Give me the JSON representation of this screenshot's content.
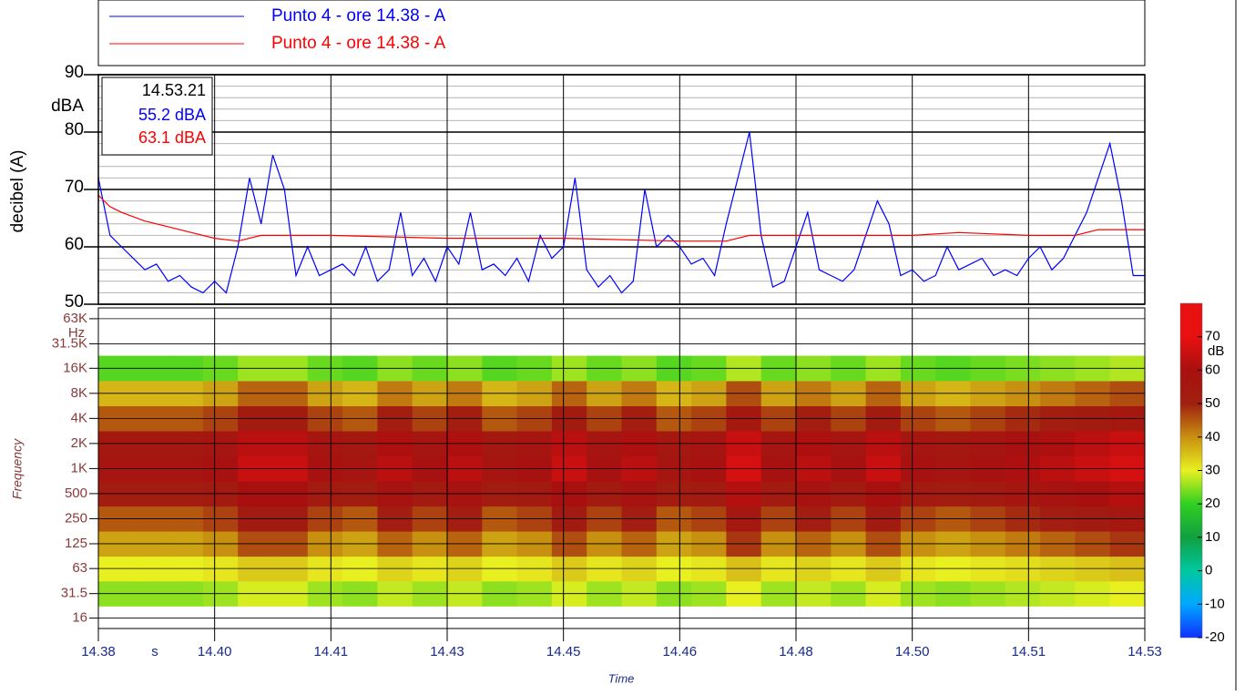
{
  "chart_data": [
    {
      "type": "line",
      "ylabel": "decibel (A)",
      "yunit": "dBA",
      "ylim": [
        50,
        90
      ],
      "yticks": [
        50,
        60,
        70,
        80,
        90
      ],
      "yminor": [
        52,
        54,
        56,
        58,
        62,
        64,
        66,
        68,
        72,
        74,
        76,
        78,
        82,
        84,
        86,
        88
      ],
      "xlim": [
        0,
        900
      ],
      "xticks": [
        {
          "value": 0,
          "label": "14.38"
        },
        {
          "value": 100,
          "label": "14.40"
        },
        {
          "value": 200,
          "label": "14.41"
        },
        {
          "value": 300,
          "label": "14.43"
        },
        {
          "value": 400,
          "label": "14.45"
        },
        {
          "value": 500,
          "label": "14.46"
        },
        {
          "value": 600,
          "label": "14.48"
        },
        {
          "value": 700,
          "label": "14.50"
        },
        {
          "value": 800,
          "label": "14.51"
        },
        {
          "value": 900,
          "label": "14.53"
        }
      ],
      "cursor": {
        "time": "14.53.21",
        "readings": [
          "55.2 dBA",
          "63.1 dBA"
        ]
      },
      "series": [
        {
          "name": "Punto 4 - ore 14.38 - A",
          "color": "#0000ff",
          "x": [
            0,
            10,
            20,
            30,
            40,
            50,
            60,
            70,
            80,
            90,
            100,
            110,
            120,
            130,
            140,
            150,
            160,
            170,
            180,
            190,
            200,
            210,
            220,
            230,
            240,
            250,
            260,
            270,
            280,
            290,
            300,
            310,
            320,
            330,
            340,
            350,
            360,
            370,
            380,
            390,
            400,
            410,
            420,
            430,
            440,
            450,
            460,
            470,
            480,
            490,
            500,
            510,
            520,
            530,
            540,
            550,
            560,
            570,
            580,
            590,
            600,
            610,
            620,
            630,
            640,
            650,
            660,
            670,
            680,
            690,
            700,
            710,
            720,
            730,
            740,
            750,
            760,
            770,
            780,
            790,
            800,
            810,
            820,
            830,
            840,
            850,
            860,
            870,
            880,
            890,
            900
          ],
          "values": [
            72,
            62,
            60,
            58,
            56,
            57,
            54,
            55,
            53,
            52,
            54,
            52,
            60,
            72,
            64,
            76,
            70,
            55,
            60,
            55,
            56,
            57,
            55,
            60,
            54,
            56,
            66,
            55,
            58,
            54,
            60,
            57,
            66,
            56,
            57,
            55,
            58,
            54,
            62,
            58,
            60,
            72,
            56,
            53,
            55,
            52,
            54,
            70,
            60,
            62,
            60,
            57,
            58,
            55,
            64,
            72,
            80,
            62,
            53,
            54,
            60,
            66,
            56,
            55,
            54,
            56,
            62,
            68,
            64,
            55,
            56,
            54,
            55,
            60,
            56,
            57,
            58,
            55,
            56,
            55,
            58,
            60,
            56,
            58,
            62,
            66,
            72,
            78,
            68,
            55,
            55
          ]
        },
        {
          "name": "Punto 4 - ore 14.38 - A",
          "color": "#ff0000",
          "x": [
            0,
            10,
            20,
            40,
            60,
            80,
            100,
            120,
            140,
            200,
            300,
            400,
            500,
            540,
            560,
            600,
            700,
            740,
            800,
            840,
            860,
            880,
            900
          ],
          "values": [
            69,
            67,
            66,
            64.5,
            63.5,
            62.5,
            61.5,
            61,
            62,
            62,
            61.5,
            61.5,
            61,
            61,
            62,
            62,
            62,
            62.5,
            62,
            62,
            63,
            63,
            63
          ]
        }
      ]
    },
    {
      "type": "heatmap",
      "ylabel": "Frequency",
      "yunit": "Hz",
      "log": true,
      "ylim": [
        12,
        85000
      ],
      "yticks": [
        16,
        31.5,
        63,
        125,
        250,
        500,
        {
          "value": 1000,
          "label": "1K"
        },
        {
          "value": 2000,
          "label": "2K"
        },
        {
          "value": 4000,
          "label": "4K"
        },
        {
          "value": 8000,
          "label": "8K"
        },
        {
          "value": 16000,
          "label": "16K"
        },
        {
          "value": 31500,
          "label": "31.5K"
        },
        {
          "value": 63000,
          "label": "63K"
        }
      ],
      "xlabel": "Time",
      "xunit": "s",
      "xlim": [
        0,
        900
      ],
      "xticks": [
        {
          "value": 0,
          "label": "14.38"
        },
        {
          "value": 100,
          "label": "14.40"
        },
        {
          "value": 200,
          "label": "14.41"
        },
        {
          "value": 300,
          "label": "14.43"
        },
        {
          "value": 400,
          "label": "14.45"
        },
        {
          "value": 500,
          "label": "14.46"
        },
        {
          "value": 600,
          "label": "14.48"
        },
        {
          "value": 700,
          "label": "14.50"
        },
        {
          "value": 800,
          "label": "14.51"
        },
        {
          "value": 900,
          "label": "14.53"
        }
      ],
      "xbins": [
        0,
        30,
        60,
        90,
        120,
        150,
        180,
        210,
        240,
        270,
        300,
        330,
        360,
        390,
        420,
        450,
        480,
        510,
        540,
        570,
        600,
        630,
        660,
        690,
        720,
        750,
        780,
        810,
        840,
        870,
        900
      ],
      "bands": [
        31.5,
        63,
        125,
        250,
        500,
        1000,
        2000,
        4000,
        8000,
        16000
      ],
      "matrix": [
        [
          25,
          25,
          25,
          26,
          29,
          29,
          26,
          25,
          28,
          26,
          28,
          25,
          26,
          29,
          26,
          28,
          25,
          26,
          30,
          26,
          28,
          26,
          29,
          26,
          25,
          26,
          27,
          28,
          29,
          30
        ],
        [
          30,
          30,
          30,
          31,
          34,
          34,
          31,
          30,
          33,
          31,
          33,
          30,
          31,
          34,
          31,
          33,
          30,
          31,
          35,
          31,
          33,
          31,
          34,
          31,
          30,
          31,
          32,
          33,
          34,
          35
        ],
        [
          38,
          38,
          38,
          40,
          46,
          46,
          40,
          38,
          44,
          40,
          44,
          38,
          40,
          46,
          40,
          44,
          38,
          40,
          48,
          40,
          44,
          40,
          46,
          40,
          38,
          40,
          42,
          44,
          46,
          48
        ],
        [
          45,
          45,
          45,
          47,
          53,
          53,
          47,
          45,
          51,
          47,
          51,
          45,
          47,
          53,
          47,
          51,
          45,
          47,
          55,
          47,
          51,
          47,
          53,
          47,
          45,
          47,
          49,
          51,
          53,
          55
        ],
        [
          52,
          52,
          52,
          54,
          60,
          60,
          54,
          52,
          58,
          54,
          58,
          52,
          54,
          60,
          54,
          58,
          52,
          54,
          62,
          54,
          58,
          54,
          60,
          54,
          52,
          54,
          56,
          58,
          60,
          62
        ],
        [
          57,
          57,
          57,
          59,
          65,
          65,
          59,
          57,
          63,
          59,
          63,
          57,
          59,
          65,
          59,
          63,
          57,
          59,
          67,
          59,
          63,
          59,
          65,
          59,
          57,
          59,
          61,
          63,
          65,
          67
        ],
        [
          55,
          55,
          55,
          57,
          63,
          63,
          57,
          55,
          61,
          57,
          61,
          55,
          57,
          63,
          57,
          61,
          55,
          57,
          65,
          57,
          61,
          57,
          63,
          57,
          55,
          57,
          59,
          61,
          63,
          65
        ],
        [
          45,
          45,
          45,
          47,
          53,
          53,
          47,
          45,
          51,
          47,
          51,
          45,
          47,
          53,
          47,
          51,
          45,
          47,
          55,
          47,
          51,
          47,
          53,
          47,
          45,
          47,
          49,
          51,
          53,
          55
        ],
        [
          36,
          36,
          36,
          38,
          44,
          44,
          38,
          36,
          42,
          38,
          42,
          36,
          38,
          44,
          38,
          42,
          36,
          38,
          46,
          38,
          42,
          38,
          44,
          38,
          36,
          38,
          40,
          42,
          44,
          46
        ],
        [
          22,
          22,
          22,
          23,
          26,
          26,
          23,
          22,
          25,
          23,
          25,
          22,
          23,
          26,
          23,
          25,
          22,
          23,
          27,
          23,
          25,
          23,
          26,
          23,
          22,
          23,
          24,
          25,
          26,
          27
        ]
      ],
      "zunit": "dB",
      "clim": [
        -20,
        80
      ],
      "cticks": [
        -20,
        -10,
        0,
        10,
        20,
        30,
        40,
        50,
        60,
        70
      ],
      "colors": [
        "#1030ff",
        "#00a8ff",
        "#00c8a0",
        "#10a040",
        "#30d020",
        "#e8f020",
        "#c89010",
        "#a02010",
        "#a81010",
        "#e81010"
      ]
    }
  ]
}
